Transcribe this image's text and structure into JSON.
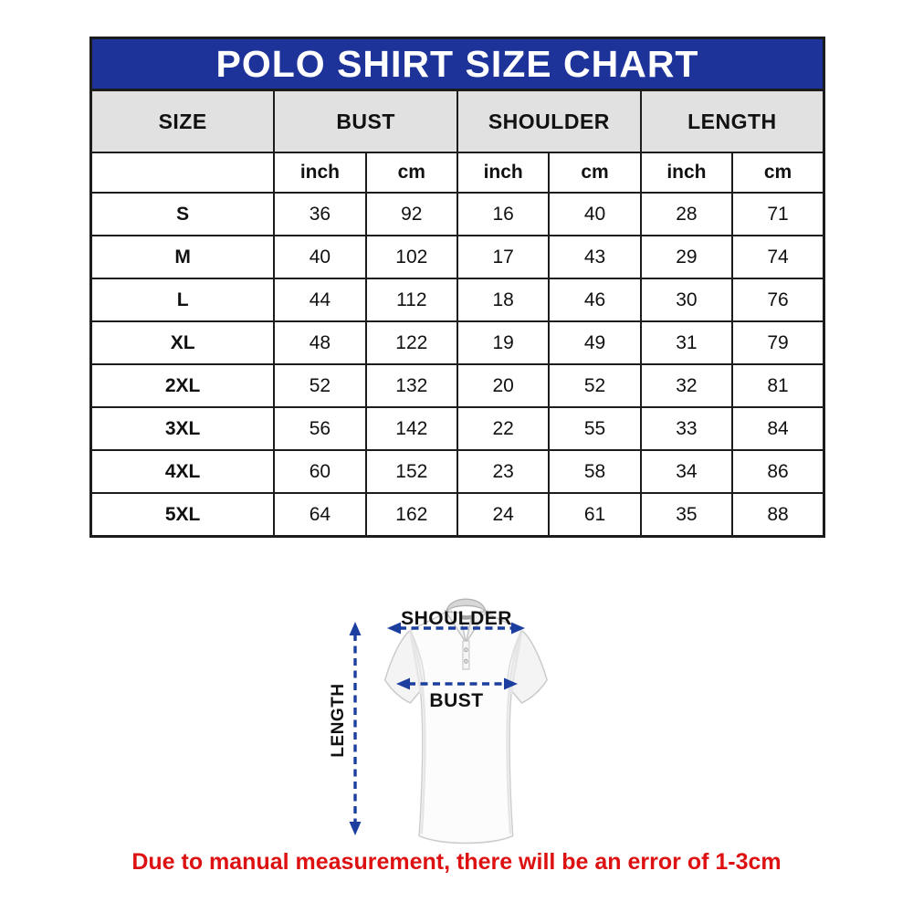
{
  "title": "POLO SHIRT SIZE CHART",
  "table": {
    "column_groups": [
      "SIZE",
      "BUST",
      "SHOULDER",
      "LENGTH"
    ],
    "unit_headers": [
      "inch",
      "cm",
      "inch",
      "cm",
      "inch",
      "cm"
    ],
    "rows": [
      {
        "size": "S",
        "values": [
          36,
          92,
          16,
          40,
          28,
          71
        ]
      },
      {
        "size": "M",
        "values": [
          40,
          102,
          17,
          43,
          29,
          74
        ]
      },
      {
        "size": "L",
        "values": [
          44,
          112,
          18,
          46,
          30,
          76
        ]
      },
      {
        "size": "XL",
        "values": [
          48,
          122,
          19,
          49,
          31,
          79
        ]
      },
      {
        "size": "2XL",
        "values": [
          52,
          132,
          20,
          52,
          32,
          81
        ]
      },
      {
        "size": "3XL",
        "values": [
          56,
          142,
          22,
          55,
          33,
          84
        ]
      },
      {
        "size": "4XL",
        "values": [
          60,
          152,
          23,
          58,
          34,
          86
        ]
      },
      {
        "size": "5XL",
        "values": [
          64,
          162,
          24,
          61,
          35,
          88
        ]
      }
    ]
  },
  "diagram": {
    "shoulder_label": "SHOULDER",
    "bust_label": "BUST",
    "length_label": "LENGTH"
  },
  "note": "Due to manual measurement, there will be an error of 1-3cm",
  "colors": {
    "header_blue": "#1e3399",
    "arrow_blue": "#1c3f9f",
    "note_red": "#dd1111",
    "header_gray": "#e1e1e1"
  }
}
